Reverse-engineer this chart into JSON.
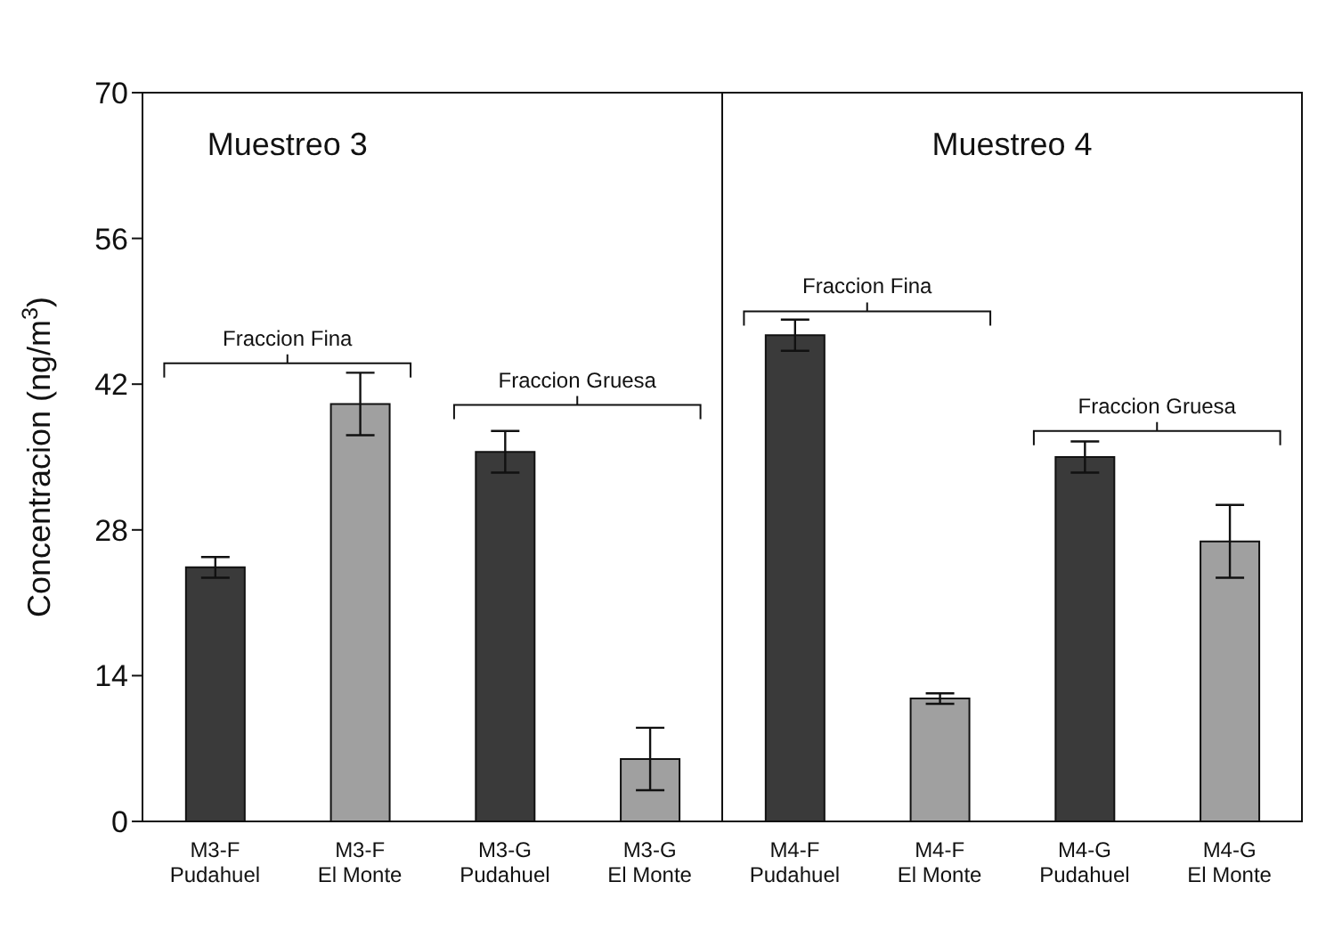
{
  "chart_data": {
    "type": "bar",
    "ylabel": "Concentracion (ng/m$^{3}$)",
    "categories": [
      "M3-F Pudahuel",
      "M3-F El Monte",
      "M3-G Pudahuel",
      "M3-G El Monte",
      "M4-F Pudahuel",
      "M4-F El Monte",
      "M4-G Pudahuel",
      "M4-G El Monte"
    ],
    "values": [
      24.4,
      40.1,
      35.5,
      6.0,
      46.7,
      11.8,
      35.0,
      26.9
    ],
    "errors": [
      1.0,
      3.0,
      2.0,
      3.0,
      1.5,
      0.5,
      1.5,
      3.5
    ],
    "colors": [
      "#3a3a3a",
      "#a0a0a0",
      "#3a3a3a",
      "#a0a0a0",
      "#3a3a3a",
      "#a0a0a0",
      "#3a3a3a",
      "#a0a0a0"
    ],
    "ylim": [
      0,
      70
    ],
    "yticks": [
      0,
      14,
      28,
      42,
      56,
      70
    ],
    "annotations": [
      "Muestreo 3",
      "Muestreo 4",
      "Fraccion Fina",
      "Fraccion Gruesa",
      "Fraccion Fina",
      "Fraccion Gruesa"
    ]
  }
}
